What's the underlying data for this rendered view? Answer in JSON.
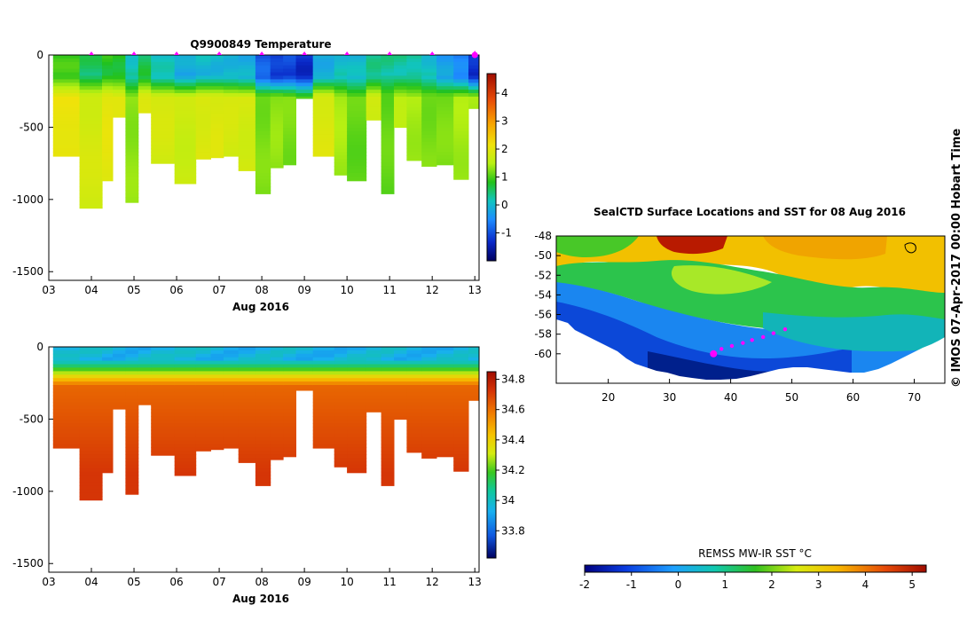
{
  "chart_data": [
    {
      "type": "heatmap",
      "panel": "temperature-section",
      "title": "Q9900849  Temperature",
      "xlabel": "Aug 2016",
      "x_ticks": [
        "03",
        "04",
        "05",
        "06",
        "07",
        "08",
        "09",
        "10",
        "11",
        "12",
        "13"
      ],
      "y_ticks": [
        "0",
        "-500",
        "-1000",
        "-1500"
      ],
      "colorbar_ticks": [
        "-1",
        "0",
        "1",
        "2",
        "3",
        "4"
      ],
      "colorbar_range": [
        -2,
        4.7
      ],
      "xlim": [
        3.0,
        13.1
      ],
      "ylim": [
        -1560,
        0
      ],
      "profile_markers_day": [
        4.0,
        5.0,
        6.0,
        7.0,
        8.0,
        9.0,
        10.0,
        11.0,
        12.0,
        13.0
      ],
      "profiles": [
        {
          "t": 3.1,
          "bottom": -700,
          "surf": 0.9,
          "deep": 2.1
        },
        {
          "t": 3.72,
          "bottom": -1060,
          "surf": 0.5,
          "deep": 1.8
        },
        {
          "t": 4.25,
          "bottom": -870,
          "surf": 0.8,
          "deep": 2.0
        },
        {
          "t": 4.5,
          "bottom": -430,
          "surf": 0.8,
          "deep": 1.9
        },
        {
          "t": 4.8,
          "bottom": -1020,
          "surf": 0.2,
          "deep": 1.3
        },
        {
          "t": 5.1,
          "bottom": -400,
          "surf": 0.6,
          "deep": 2.0
        },
        {
          "t": 5.4,
          "bottom": -750,
          "surf": 0.1,
          "deep": 1.8
        },
        {
          "t": 5.95,
          "bottom": -890,
          "surf": -0.2,
          "deep": 1.7
        },
        {
          "t": 6.45,
          "bottom": -720,
          "surf": 0.0,
          "deep": 1.9
        },
        {
          "t": 6.8,
          "bottom": -710,
          "surf": 0.0,
          "deep": 1.9
        },
        {
          "t": 7.1,
          "bottom": -700,
          "surf": 0.0,
          "deep": 1.8
        },
        {
          "t": 7.45,
          "bottom": -800,
          "surf": -0.1,
          "deep": 1.8
        },
        {
          "t": 7.85,
          "bottom": -960,
          "surf": -0.9,
          "deep": 1.2
        },
        {
          "t": 8.2,
          "bottom": -780,
          "surf": -1.2,
          "deep": 1.3
        },
        {
          "t": 8.5,
          "bottom": -760,
          "surf": -1.1,
          "deep": 1.2
        },
        {
          "t": 8.8,
          "bottom": -300,
          "surf": -1.3,
          "deep": 1.0
        },
        {
          "t": 9.2,
          "bottom": -700,
          "surf": -0.1,
          "deep": 1.9
        },
        {
          "t": 9.7,
          "bottom": -830,
          "surf": 0.1,
          "deep": 1.4
        },
        {
          "t": 10.0,
          "bottom": -870,
          "surf": 0.0,
          "deep": 1.1
        },
        {
          "t": 10.45,
          "bottom": -450,
          "surf": 0.3,
          "deep": 1.8
        },
        {
          "t": 10.8,
          "bottom": -960,
          "surf": 0.3,
          "deep": 1.1
        },
        {
          "t": 11.1,
          "bottom": -500,
          "surf": 0.3,
          "deep": 1.5
        },
        {
          "t": 11.4,
          "bottom": -730,
          "surf": 0.3,
          "deep": 1.4
        },
        {
          "t": 11.75,
          "bottom": -770,
          "surf": 0.1,
          "deep": 1.2
        },
        {
          "t": 12.1,
          "bottom": -760,
          "surf": -0.3,
          "deep": 1.2
        },
        {
          "t": 12.5,
          "bottom": -860,
          "surf": -0.6,
          "deep": 1.4
        },
        {
          "t": 12.85,
          "bottom": -370,
          "surf": -1.3,
          "deep": 1.4
        }
      ]
    },
    {
      "type": "heatmap",
      "panel": "salinity-section",
      "title": "",
      "xlabel": "Aug 2016",
      "x_ticks": [
        "03",
        "04",
        "05",
        "06",
        "07",
        "08",
        "09",
        "10",
        "11",
        "12",
        "13"
      ],
      "y_ticks": [
        "0",
        "-500",
        "-1000",
        "-1500"
      ],
      "colorbar_ticks": [
        "33.8",
        "34",
        "34.2",
        "34.4",
        "34.6",
        "34.8"
      ],
      "colorbar_range": [
        33.62,
        34.85
      ],
      "xlim": [
        3.0,
        13.1
      ],
      "ylim": [
        -1560,
        0
      ],
      "surface_value": 33.95,
      "deep_value": 34.72
    },
    {
      "type": "heatmap",
      "panel": "sst-map",
      "title": "SealCTD Surface Locations and SST for 08 Aug 2016",
      "x_ticks": [
        "20",
        "30",
        "40",
        "50",
        "60",
        "70"
      ],
      "y_ticks": [
        "-48",
        "-50",
        "-52",
        "-54",
        "-56",
        "-58",
        "-60"
      ],
      "xlim": [
        11.5,
        75
      ],
      "ylim": [
        -63,
        -48
      ],
      "colorbar_label": "REMSS MW-IR SST °C",
      "colorbar_ticks": [
        "-2",
        "-1",
        "0",
        "1",
        "2",
        "3",
        "4",
        "5"
      ],
      "colorbar_range": [
        -2,
        5.3
      ],
      "track": [
        [
          37.2,
          -60.0
        ],
        [
          38.5,
          -59.5
        ],
        [
          40.2,
          -59.2
        ],
        [
          42.0,
          -58.9
        ],
        [
          43.5,
          -58.6
        ],
        [
          45.3,
          -58.3
        ],
        [
          47.0,
          -57.9
        ],
        [
          48.9,
          -57.5
        ]
      ],
      "side_label": "© IMOS 07-Apr-2017 00:00 Hobart Time"
    }
  ]
}
